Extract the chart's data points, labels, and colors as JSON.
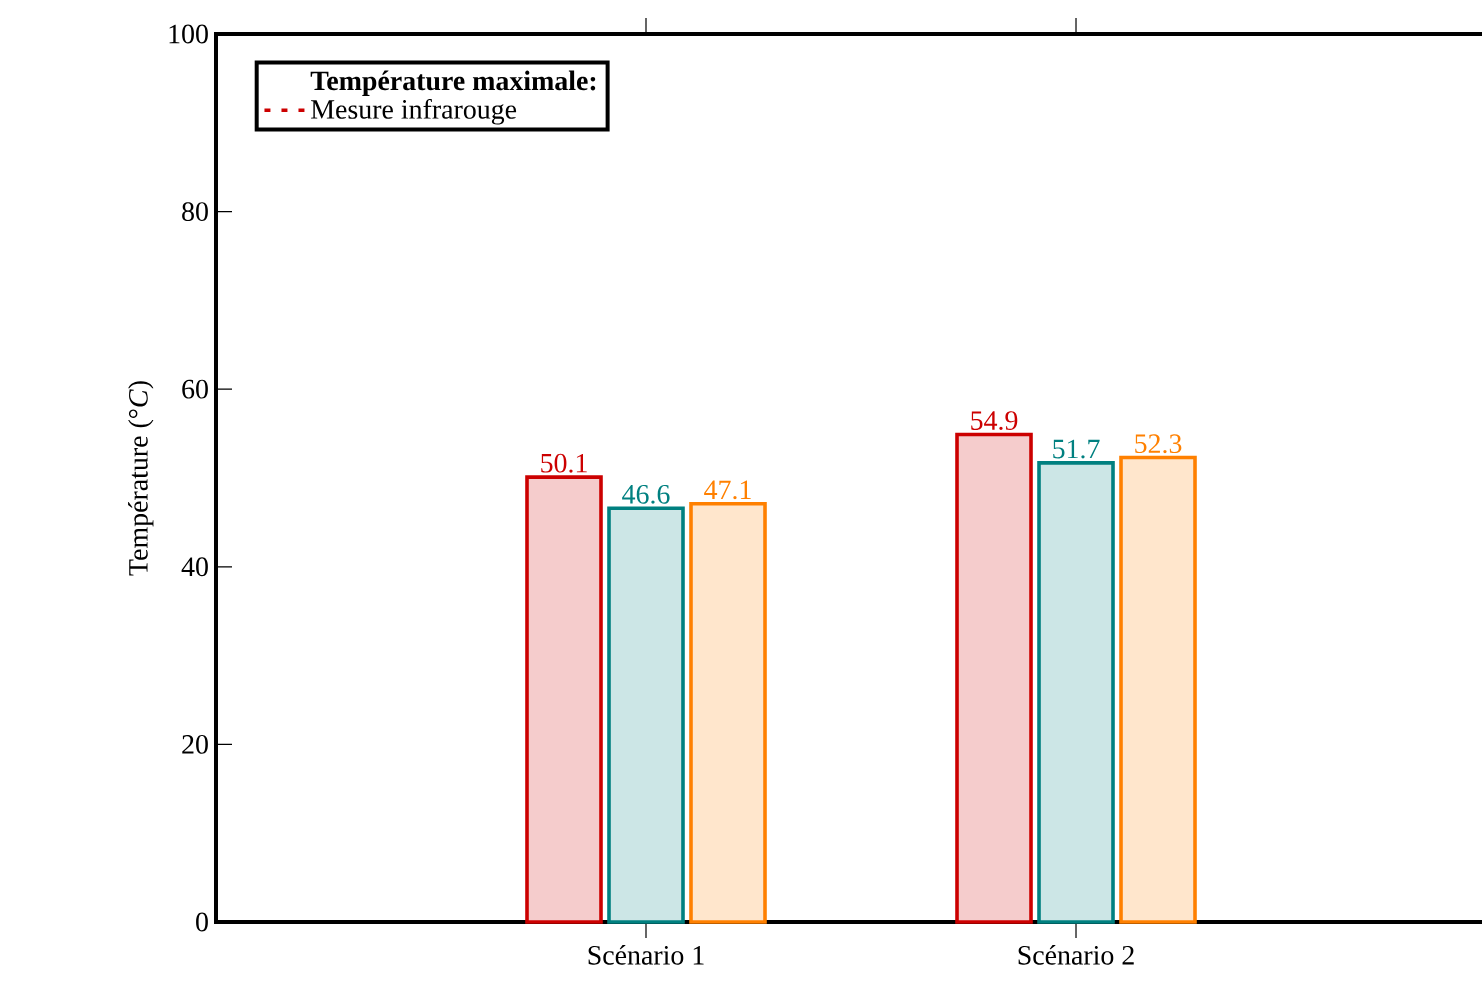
{
  "chart_data": {
    "type": "bar",
    "ylabel": "Température (°*C*)",
    "legend_title": "Température maximale:",
    "categories": [
      "Scénario 1",
      "Scénario 2"
    ],
    "series": [
      {
        "name": "Mesure infrarouge",
        "color": "#cc0000",
        "values": [
          50.1,
          54.9
        ]
      },
      {
        "color": "#008080",
        "values": [
          46.6,
          51.7
        ]
      },
      {
        "color": "#ff8000",
        "values": [
          47.1,
          52.3
        ]
      }
    ],
    "ylim": [
      0,
      100
    ],
    "yticks": [
      0,
      20,
      40,
      60,
      80,
      100
    ],
    "data_labels": true,
    "legend": "top left",
    "grid": false
  }
}
